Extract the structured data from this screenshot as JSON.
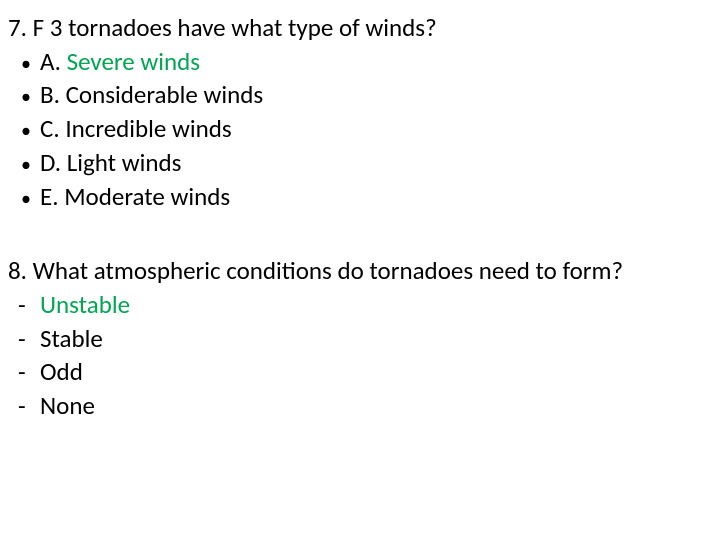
{
  "q7": {
    "number": "7.",
    "text": "F 3 tornadoes have what type of winds?",
    "bullet": "•",
    "font_size": 25,
    "text_color": "#000000",
    "highlight_color": "#00a651",
    "options": [
      {
        "letter": "A.",
        "text": "Severe winds",
        "highlighted": true
      },
      {
        "letter": "B.",
        "text": "Considerable winds",
        "highlighted": false
      },
      {
        "letter": "C.",
        "text": "Incredible winds",
        "highlighted": false
      },
      {
        "letter": "D.",
        "text": "Light winds",
        "highlighted": false
      },
      {
        "letter": "E.",
        "text": "Moderate winds",
        "highlighted": false
      }
    ]
  },
  "q8": {
    "number": "8.",
    "text": "What atmospheric conditions do tornadoes need to form?",
    "bullet": "-",
    "font_size": 25,
    "text_color": "#000000",
    "highlight_color": "#00a651",
    "options": [
      {
        "text": "Unstable",
        "highlighted": true
      },
      {
        "text": "Stable",
        "highlighted": false
      },
      {
        "text": "Odd",
        "highlighted": false
      },
      {
        "text": "None",
        "highlighted": false
      }
    ]
  }
}
